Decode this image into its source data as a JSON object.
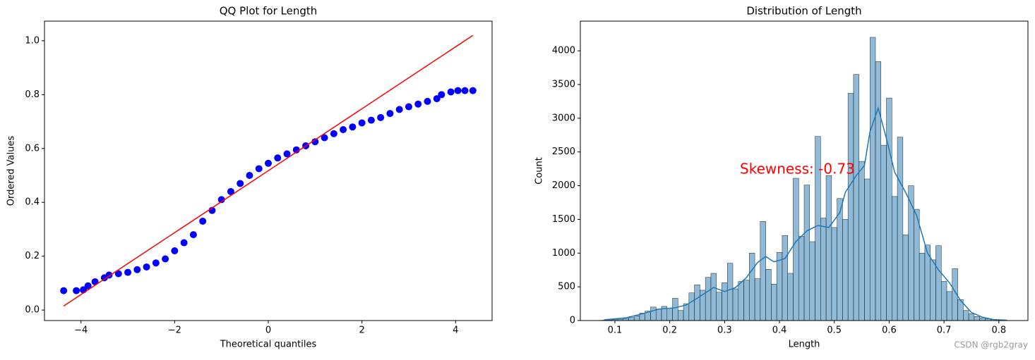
{
  "chart_data": [
    {
      "type": "scatter",
      "title": "QQ Plot for Length",
      "xlabel": "Theoretical quantiles",
      "ylabel": "Ordered Values",
      "x": [
        -4.37,
        -4.1,
        -3.95,
        -3.85,
        -3.7,
        -3.5,
        -3.4,
        -3.2,
        -3.0,
        -2.8,
        -2.6,
        -2.4,
        -2.2,
        -2.0,
        -1.8,
        -1.6,
        -1.4,
        -1.2,
        -1.0,
        -0.8,
        -0.6,
        -0.4,
        -0.2,
        0,
        0.2,
        0.4,
        0.6,
        0.8,
        1.0,
        1.2,
        1.4,
        1.6,
        1.8,
        2.0,
        2.2,
        2.4,
        2.6,
        2.8,
        3.0,
        3.2,
        3.4,
        3.6,
        3.7,
        3.9,
        4.05,
        4.2,
        4.37
      ],
      "values": [
        0.072,
        0.072,
        0.075,
        0.09,
        0.105,
        0.12,
        0.13,
        0.135,
        0.14,
        0.15,
        0.16,
        0.175,
        0.19,
        0.22,
        0.25,
        0.28,
        0.33,
        0.37,
        0.41,
        0.44,
        0.47,
        0.5,
        0.525,
        0.545,
        0.565,
        0.58,
        0.595,
        0.61,
        0.625,
        0.64,
        0.655,
        0.67,
        0.68,
        0.695,
        0.705,
        0.715,
        0.73,
        0.745,
        0.755,
        0.765,
        0.775,
        0.785,
        0.8,
        0.81,
        0.815,
        0.815,
        0.815
      ],
      "color": "#0000ff",
      "fit_line": {
        "x": [
          -4.37,
          4.37
        ],
        "values": [
          0.015,
          1.02
        ],
        "color": "#ff0000"
      },
      "xlim": [
        -4.78,
        4.78
      ],
      "ylim": [
        -0.039,
        1.073
      ],
      "xticks": [
        {
          "value": -4,
          "label": "−4"
        },
        {
          "value": -2,
          "label": "−2"
        },
        0,
        2,
        4
      ],
      "yticks": [
        {
          "value": 0,
          "label": "0.0"
        },
        0.2,
        0.4,
        0.6,
        0.8,
        {
          "value": 1,
          "label": "1.0"
        }
      ]
    },
    {
      "type": "histogram",
      "title": "Distribution of Length",
      "xlabel": "Length",
      "ylabel": "Count",
      "bins": [
        0.075,
        0.085,
        0.095,
        0.105,
        0.115,
        0.125,
        0.135,
        0.145,
        0.155,
        0.165,
        0.175,
        0.185,
        0.195,
        0.205,
        0.215,
        0.225,
        0.235,
        0.245,
        0.255,
        0.265,
        0.275,
        0.285,
        0.295,
        0.305,
        0.315,
        0.325,
        0.335,
        0.345,
        0.355,
        0.365,
        0.375,
        0.385,
        0.395,
        0.405,
        0.415,
        0.425,
        0.435,
        0.445,
        0.455,
        0.465,
        0.475,
        0.485,
        0.495,
        0.505,
        0.515,
        0.525,
        0.535,
        0.545,
        0.555,
        0.565,
        0.575,
        0.585,
        0.595,
        0.605,
        0.615,
        0.625,
        0.635,
        0.645,
        0.655,
        0.665,
        0.675,
        0.685,
        0.695,
        0.705,
        0.715,
        0.725,
        0.735,
        0.745,
        0.755,
        0.765,
        0.775,
        0.785,
        0.795,
        0.805,
        0.815
      ],
      "values": [
        5,
        10,
        15,
        20,
        30,
        45,
        70,
        110,
        140,
        200,
        170,
        210,
        180,
        330,
        150,
        250,
        410,
        530,
        450,
        640,
        700,
        420,
        560,
        850,
        470,
        580,
        600,
        1000,
        620,
        1470,
        760,
        540,
        1010,
        1260,
        700,
        2110,
        1250,
        2010,
        1170,
        2730,
        1520,
        2150,
        1380,
        1810,
        1500,
        3370,
        3650,
        2360,
        2100,
        4200,
        3840,
        2600,
        3300,
        1840,
        2720,
        1270,
        2000,
        1650,
        1000,
        1120,
        900,
        1110,
        580,
        430,
        770,
        310,
        150,
        100,
        60,
        40,
        25,
        15,
        8,
        5
      ],
      "color": "#1f77b4",
      "kde": {
        "x": [
          0.08,
          0.12,
          0.15,
          0.18,
          0.21,
          0.23,
          0.25,
          0.28,
          0.3,
          0.32,
          0.34,
          0.36,
          0.375,
          0.39,
          0.41,
          0.43,
          0.45,
          0.47,
          0.49,
          0.51,
          0.52,
          0.54,
          0.555,
          0.565,
          0.58,
          0.595,
          0.61,
          0.63,
          0.65,
          0.67,
          0.69,
          0.71,
          0.73,
          0.75,
          0.77,
          0.79,
          0.815
        ],
        "values": [
          10,
          40,
          100,
          170,
          190,
          230,
          330,
          490,
          430,
          490,
          640,
          860,
          950,
          870,
          920,
          1170,
          1330,
          1410,
          1380,
          1600,
          1900,
          2150,
          2300,
          2800,
          3150,
          2700,
          2200,
          1900,
          1560,
          1000,
          750,
          560,
          300,
          120,
          50,
          15,
          5
        ]
      },
      "annotation": {
        "text": "Skewness: -0.73",
        "color": "#ff0000"
      },
      "xlim": [
        0.037,
        0.853
      ],
      "ylim": [
        0,
        4440
      ],
      "xticks": [
        0.1,
        0.2,
        0.3,
        0.4,
        0.5,
        0.6,
        0.7,
        0.8
      ],
      "yticks": [
        0,
        500,
        1000,
        1500,
        2000,
        2500,
        3000,
        3500,
        4000
      ]
    }
  ],
  "watermark": "CSDN @rgb2gray"
}
